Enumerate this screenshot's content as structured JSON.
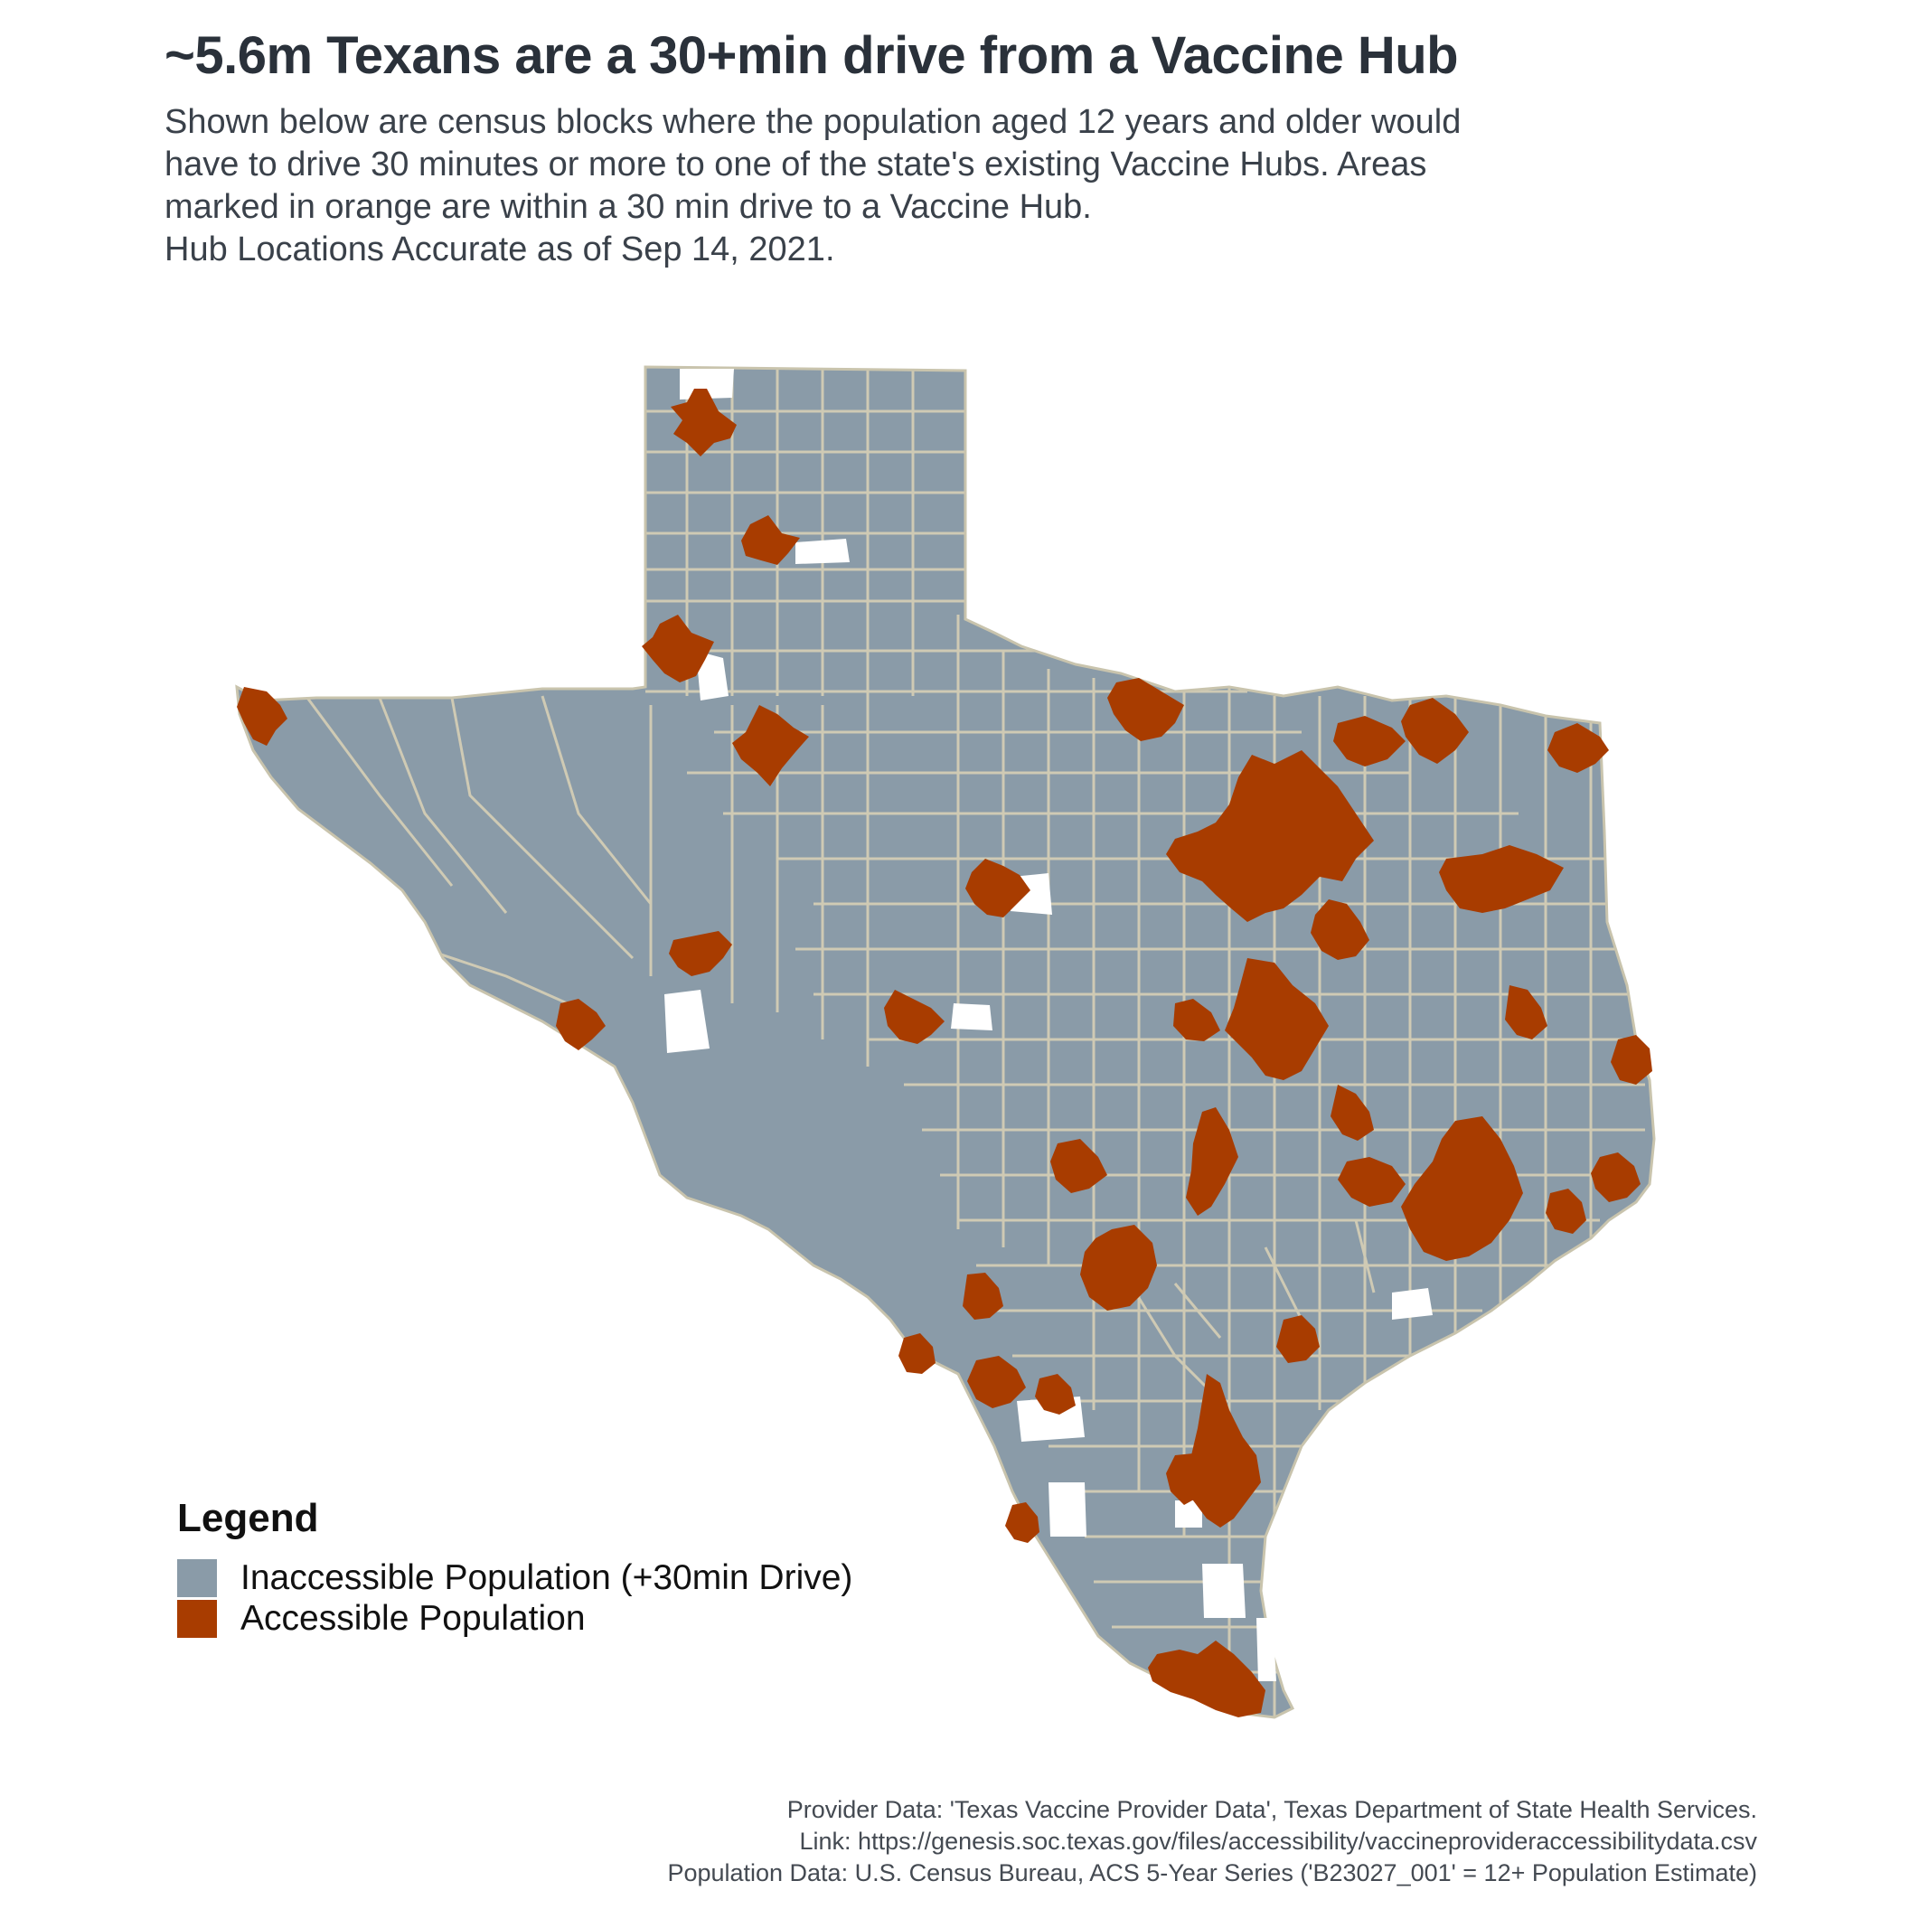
{
  "title": "~5.6m Texans are a 30+min drive from a Vaccine Hub",
  "subtitle": [
    "Shown below are census blocks where the population aged 12 years and older would",
    "have to drive 30 minutes or more to one of the state's existing Vaccine Hubs. Areas",
    "marked in orange are within a 30 min drive to a Vaccine Hub.",
    "Hub Locations Accurate as of Sep 14, 2021."
  ],
  "legend": {
    "title": "Legend",
    "items": [
      {
        "label": "Inaccessible Population (+30min Drive)",
        "color": "#8a9ba8"
      },
      {
        "label": "Accessible Population",
        "color": "#a83c00"
      }
    ]
  },
  "map": {
    "region": "Texas",
    "base_color": "#8a9ba8",
    "border_color": "#cfcab4",
    "accessible_color": "#a83c00"
  },
  "sources": [
    "Provider Data: 'Texas Vaccine Provider Data', Texas Department of State Health Services.",
    "Link: https://genesis.soc.texas.gov/files/accessibility/vaccineprovideraccessibilitydata.csv",
    "Population Data: U.S. Census Bureau, ACS 5-Year Series ('B23027_001' = 12+ Population Estimate)"
  ]
}
